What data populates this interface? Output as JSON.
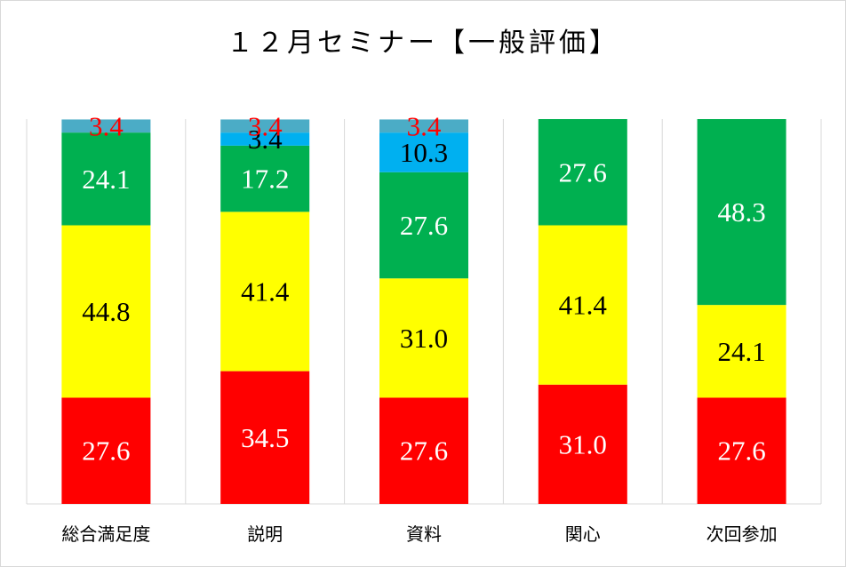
{
  "chart_data": {
    "type": "bar",
    "stacked": true,
    "title": "１２月セミナー【一般評価】",
    "categories": [
      "総合満足度",
      "説明",
      "資料",
      "関心",
      "次回参加"
    ],
    "ylim": [
      0,
      100
    ],
    "grid": true,
    "series": [
      {
        "color": "#ff0000",
        "label_color": "#ffffff",
        "values": [
          27.6,
          34.5,
          27.6,
          31.0,
          27.6
        ]
      },
      {
        "color": "#ffff00",
        "label_color": "#000000",
        "values": [
          44.8,
          41.4,
          31.0,
          41.4,
          24.1
        ]
      },
      {
        "color": "#00b050",
        "label_color": "#ffffff",
        "values": [
          24.1,
          17.2,
          27.6,
          27.6,
          48.3
        ]
      },
      {
        "color": "#00b0f0",
        "label_color": "#000000",
        "values": [
          0,
          3.4,
          10.3,
          0,
          0
        ]
      },
      {
        "color": "#4bacc6",
        "label_color": "#ff0000",
        "values": [
          3.4,
          3.4,
          3.4,
          0,
          0
        ]
      }
    ]
  }
}
